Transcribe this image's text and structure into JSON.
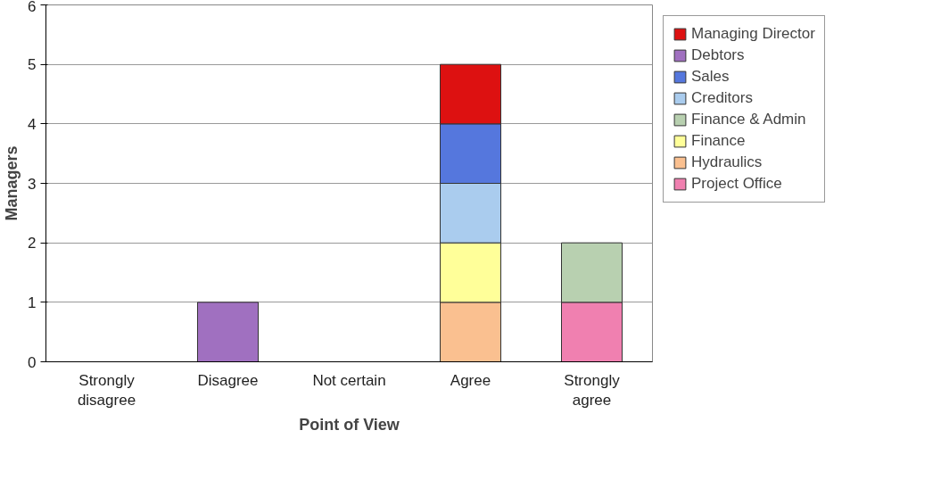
{
  "chart_data": {
    "type": "bar",
    "stacked": true,
    "xlabel": "Point of View",
    "ylabel": "Managers",
    "categories": [
      "Strongly\ndisagree",
      "Disagree",
      "Not certain",
      "Agree",
      "Strongly\nagree"
    ],
    "series": [
      {
        "name": "Project Office",
        "color": "#f080b0",
        "values": [
          null,
          null,
          null,
          null,
          1
        ]
      },
      {
        "name": "Hydraulics",
        "color": "#fac090",
        "values": [
          null,
          null,
          null,
          1,
          null
        ]
      },
      {
        "name": "Finance",
        "color": "#ffff99",
        "values": [
          null,
          null,
          null,
          1,
          null
        ]
      },
      {
        "name": "Finance & Admin",
        "color": "#b8d0b0",
        "values": [
          null,
          null,
          null,
          null,
          1
        ]
      },
      {
        "name": "Creditors",
        "color": "#aaccee",
        "values": [
          null,
          null,
          null,
          1,
          null
        ]
      },
      {
        "name": "Sales",
        "color": "#5577dd",
        "values": [
          null,
          null,
          null,
          1,
          null
        ]
      },
      {
        "name": "Debtors",
        "color": "#a070c0",
        "values": [
          null,
          1,
          null,
          null,
          null
        ]
      },
      {
        "name": "Managing Director",
        "color": "#dd1111",
        "values": [
          null,
          null,
          null,
          1,
          null
        ]
      }
    ],
    "ylim": [
      0,
      6
    ],
    "yticks": [
      0,
      1,
      2,
      3,
      4,
      5,
      6
    ],
    "grid": "y",
    "legend": "right"
  }
}
